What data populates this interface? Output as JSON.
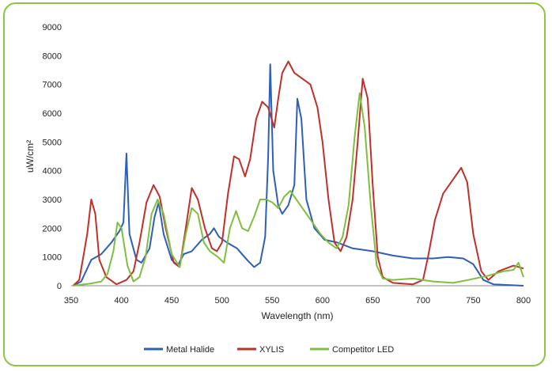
{
  "chart_data": {
    "type": "line",
    "title": "",
    "xlabel": "Wavelength (nm)",
    "ylabel": "uW/cm²",
    "xlim": [
      350,
      800
    ],
    "ylim": [
      0,
      9000
    ],
    "x_ticks": [
      "350",
      "400",
      "450",
      "500",
      "550",
      "600",
      "650",
      "700",
      "750",
      "800"
    ],
    "y_ticks": [
      "0",
      "1000",
      "2000",
      "3000",
      "4000",
      "5000",
      "6000",
      "7000",
      "8000",
      "9000"
    ],
    "grid": false,
    "legend_position": "bottom",
    "series": [
      {
        "name": "Metal Halide",
        "color": "#2e5fb8",
        "points": [
          [
            352,
            0
          ],
          [
            360,
            150
          ],
          [
            370,
            900
          ],
          [
            380,
            1100
          ],
          [
            390,
            1500
          ],
          [
            398,
            1900
          ],
          [
            402,
            2200
          ],
          [
            405,
            4600
          ],
          [
            408,
            1800
          ],
          [
            415,
            900
          ],
          [
            420,
            800
          ],
          [
            428,
            1300
          ],
          [
            433,
            2400
          ],
          [
            437,
            2900
          ],
          [
            442,
            1800
          ],
          [
            450,
            900
          ],
          [
            456,
            700
          ],
          [
            462,
            1100
          ],
          [
            470,
            1200
          ],
          [
            480,
            1600
          ],
          [
            488,
            1800
          ],
          [
            492,
            2000
          ],
          [
            497,
            1700
          ],
          [
            505,
            1500
          ],
          [
            515,
            1300
          ],
          [
            525,
            900
          ],
          [
            532,
            650
          ],
          [
            538,
            800
          ],
          [
            543,
            1700
          ],
          [
            546,
            4500
          ],
          [
            548,
            7700
          ],
          [
            551,
            4000
          ],
          [
            556,
            2800
          ],
          [
            560,
            2500
          ],
          [
            566,
            2800
          ],
          [
            572,
            3500
          ],
          [
            575,
            6500
          ],
          [
            579,
            5800
          ],
          [
            584,
            3000
          ],
          [
            592,
            2000
          ],
          [
            602,
            1600
          ],
          [
            615,
            1500
          ],
          [
            630,
            1300
          ],
          [
            650,
            1200
          ],
          [
            670,
            1050
          ],
          [
            690,
            950
          ],
          [
            710,
            950
          ],
          [
            725,
            1000
          ],
          [
            740,
            950
          ],
          [
            750,
            750
          ],
          [
            760,
            200
          ],
          [
            770,
            50
          ],
          [
            800,
            0
          ]
        ]
      },
      {
        "name": "XYLIS",
        "color": "#c0302a",
        "points": [
          [
            352,
            0
          ],
          [
            358,
            200
          ],
          [
            362,
            1000
          ],
          [
            366,
            1800
          ],
          [
            370,
            3000
          ],
          [
            374,
            2500
          ],
          [
            378,
            900
          ],
          [
            385,
            300
          ],
          [
            395,
            50
          ],
          [
            405,
            200
          ],
          [
            412,
            500
          ],
          [
            418,
            1500
          ],
          [
            425,
            2900
          ],
          [
            432,
            3500
          ],
          [
            438,
            3100
          ],
          [
            444,
            2000
          ],
          [
            452,
            800
          ],
          [
            458,
            650
          ],
          [
            464,
            2000
          ],
          [
            470,
            3400
          ],
          [
            476,
            3000
          ],
          [
            483,
            2000
          ],
          [
            490,
            1300
          ],
          [
            495,
            1200
          ],
          [
            500,
            1500
          ],
          [
            506,
            3200
          ],
          [
            512,
            4500
          ],
          [
            517,
            4400
          ],
          [
            523,
            3800
          ],
          [
            528,
            4400
          ],
          [
            534,
            5800
          ],
          [
            540,
            6400
          ],
          [
            546,
            6200
          ],
          [
            552,
            5500
          ],
          [
            556,
            6500
          ],
          [
            560,
            7400
          ],
          [
            566,
            7800
          ],
          [
            572,
            7400
          ],
          [
            580,
            7200
          ],
          [
            588,
            7000
          ],
          [
            595,
            6200
          ],
          [
            600,
            5000
          ],
          [
            606,
            3000
          ],
          [
            612,
            1500
          ],
          [
            618,
            1200
          ],
          [
            624,
            1700
          ],
          [
            630,
            3000
          ],
          [
            635,
            5000
          ],
          [
            640,
            7200
          ],
          [
            645,
            6500
          ],
          [
            650,
            3500
          ],
          [
            655,
            1000
          ],
          [
            660,
            300
          ],
          [
            670,
            100
          ],
          [
            690,
            50
          ],
          [
            700,
            200
          ],
          [
            705,
            1000
          ],
          [
            712,
            2300
          ],
          [
            720,
            3200
          ],
          [
            730,
            3700
          ],
          [
            738,
            4100
          ],
          [
            744,
            3600
          ],
          [
            750,
            1800
          ],
          [
            758,
            500
          ],
          [
            765,
            200
          ],
          [
            775,
            500
          ],
          [
            790,
            700
          ],
          [
            800,
            600
          ]
        ]
      },
      {
        "name": "Competitor LED",
        "color": "#7fbf3f",
        "points": [
          [
            352,
            0
          ],
          [
            370,
            80
          ],
          [
            380,
            150
          ],
          [
            386,
            400
          ],
          [
            392,
            1200
          ],
          [
            396,
            2200
          ],
          [
            400,
            2000
          ],
          [
            406,
            700
          ],
          [
            412,
            150
          ],
          [
            418,
            300
          ],
          [
            424,
            1000
          ],
          [
            430,
            2500
          ],
          [
            436,
            3000
          ],
          [
            442,
            2500
          ],
          [
            450,
            1100
          ],
          [
            458,
            650
          ],
          [
            464,
            1800
          ],
          [
            470,
            2700
          ],
          [
            476,
            2500
          ],
          [
            482,
            1500
          ],
          [
            488,
            1200
          ],
          [
            496,
            1000
          ],
          [
            502,
            800
          ],
          [
            508,
            2000
          ],
          [
            514,
            2600
          ],
          [
            520,
            2000
          ],
          [
            526,
            1900
          ],
          [
            532,
            2400
          ],
          [
            538,
            3000
          ],
          [
            544,
            3000
          ],
          [
            550,
            2900
          ],
          [
            556,
            2700
          ],
          [
            562,
            3100
          ],
          [
            568,
            3300
          ],
          [
            574,
            3000
          ],
          [
            582,
            2600
          ],
          [
            590,
            2200
          ],
          [
            598,
            1800
          ],
          [
            606,
            1500
          ],
          [
            614,
            1300
          ],
          [
            620,
            1700
          ],
          [
            626,
            2800
          ],
          [
            632,
            5200
          ],
          [
            637,
            6700
          ],
          [
            642,
            5500
          ],
          [
            648,
            2800
          ],
          [
            654,
            700
          ],
          [
            660,
            250
          ],
          [
            670,
            200
          ],
          [
            690,
            250
          ],
          [
            710,
            150
          ],
          [
            730,
            100
          ],
          [
            745,
            200
          ],
          [
            765,
            350
          ],
          [
            780,
            500
          ],
          [
            790,
            550
          ],
          [
            795,
            800
          ],
          [
            800,
            300
          ]
        ]
      }
    ]
  }
}
